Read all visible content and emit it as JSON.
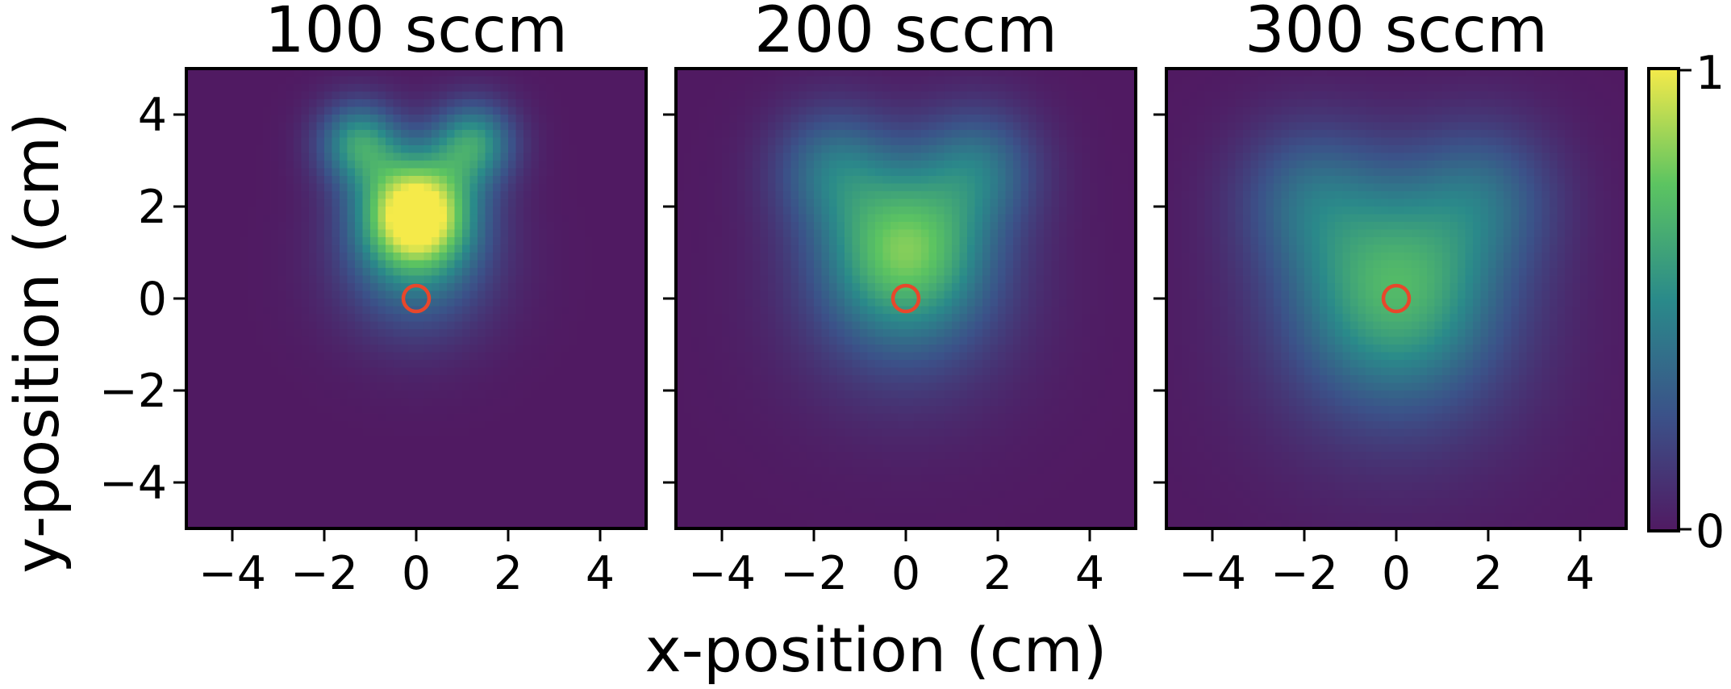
{
  "chart_data": {
    "type": "heatmap",
    "xlabel": "x-position (cm)",
    "ylabel": "y-position (cm)",
    "xlim": [
      -5,
      5
    ],
    "ylim": [
      -5,
      5
    ],
    "xticks": [
      -4,
      -2,
      0,
      2,
      4
    ],
    "yticks": [
      -4,
      -2,
      0,
      2,
      4
    ],
    "tick_labels": [
      "−4",
      "−2",
      "0",
      "2",
      "4"
    ],
    "colormap": "viridis",
    "colorbar": {
      "min": 0,
      "max": 1,
      "tick_labels": [
        "0",
        "1"
      ]
    },
    "marker": {
      "shape": "circle",
      "color": "#e8472b",
      "x": 0,
      "y": 0
    },
    "panels": [
      {
        "title": "100 sccm",
        "peak": 1.0,
        "center_y": 1.9,
        "spread": 0.85,
        "wing_x": 1.25,
        "wing_y": 3.4
      },
      {
        "title": "200 sccm",
        "peak": 0.62,
        "center_y": 1.1,
        "spread": 1.25,
        "wing_x": 1.6,
        "wing_y": 2.9
      },
      {
        "title": "300 sccm",
        "peak": 0.52,
        "center_y": 0.25,
        "spread": 1.55,
        "wing_x": 1.9,
        "wing_y": 2.3
      }
    ]
  }
}
